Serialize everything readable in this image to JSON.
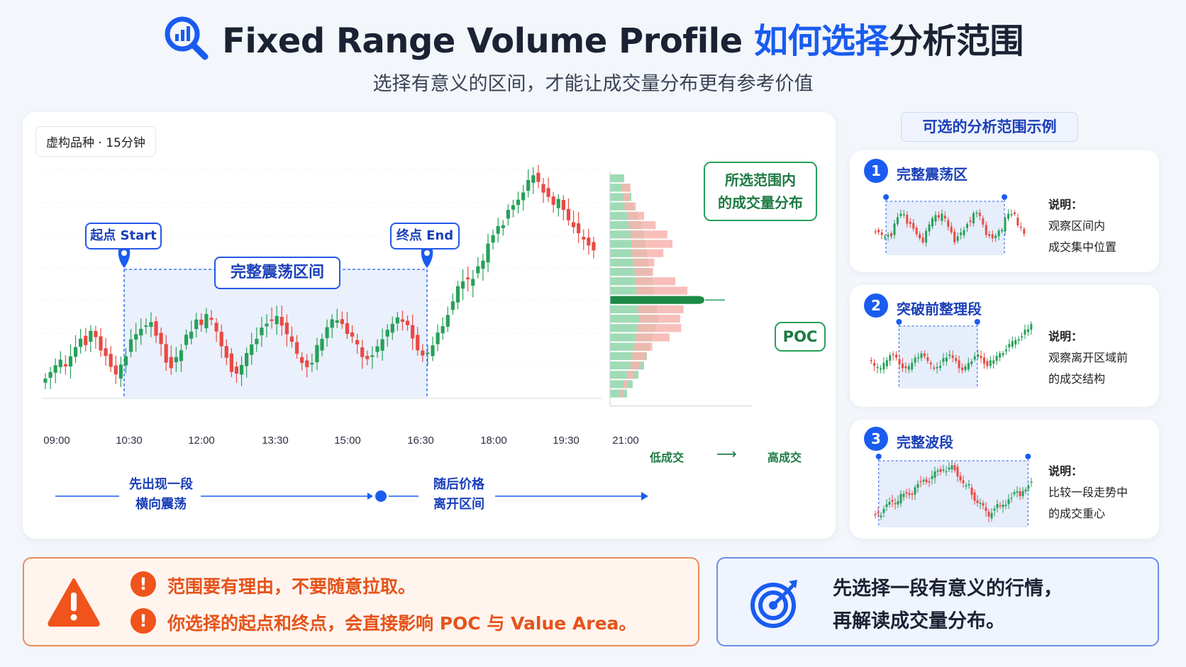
{
  "header": {
    "icon": "search-chart-icon",
    "title_main": "Fixed Range Volume Profile ",
    "title_blue": "如何选择",
    "title_rest": "分析范围",
    "subtitle": "选择有意义的区间，才能让成交量分布更有参考价值"
  },
  "main": {
    "tag": "虚构品种 · 15分钟",
    "start_label": "起点 Start",
    "end_label": "终点 End",
    "range_label": "完整震荡区间",
    "profile_label_1": "所选范围内",
    "profile_label_2": "的成交量分布",
    "poc_label": "POC",
    "low_volume": "低成交",
    "high_volume": "高成交",
    "arrow_glyph": "⟶",
    "flow_1a": "先出现一段",
    "flow_1b": "横向震荡",
    "flow_2a": "随后价格",
    "flow_2b": "离开区间"
  },
  "chart_data": {
    "type": "candlestick",
    "x_ticks": [
      "09:00",
      "10:30",
      "12:00",
      "13:30",
      "15:00",
      "16:30",
      "18:00",
      "19:30",
      "21:00"
    ],
    "range_start": "10:30",
    "range_end": "16:30",
    "price_path": [
      0.82,
      0.78,
      0.74,
      0.72,
      0.76,
      0.7,
      0.62,
      0.56,
      0.58,
      0.52,
      0.56,
      0.62,
      0.68,
      0.76,
      0.8,
      0.74,
      0.66,
      0.58,
      0.52,
      0.48,
      0.5,
      0.46,
      0.52,
      0.6,
      0.7,
      0.74,
      0.7,
      0.62,
      0.56,
      0.5,
      0.46,
      0.48,
      0.42,
      0.46,
      0.52,
      0.6,
      0.68,
      0.76,
      0.8,
      0.74,
      0.66,
      0.6,
      0.54,
      0.48,
      0.44,
      0.46,
      0.42,
      0.48,
      0.54,
      0.6,
      0.66,
      0.72,
      0.74,
      0.7,
      0.62,
      0.56,
      0.5,
      0.46,
      0.44,
      0.48,
      0.52,
      0.56,
      0.6,
      0.66,
      0.7,
      0.66,
      0.62,
      0.56,
      0.5,
      0.46,
      0.42,
      0.44,
      0.48,
      0.54,
      0.62,
      0.68,
      0.66,
      0.6,
      0.54,
      0.48,
      0.4,
      0.32,
      0.24,
      0.18,
      0.2,
      0.16,
      0.1,
      0.06,
      -0.04,
      -0.1,
      -0.16,
      -0.2,
      -0.26,
      -0.3,
      -0.36,
      -0.4,
      -0.46,
      -0.5,
      -0.46,
      -0.4,
      -0.36,
      -0.3,
      -0.34,
      -0.28,
      -0.22,
      -0.18,
      -0.12,
      -0.08,
      -0.06,
      -0.02
    ],
    "volume_profile": {
      "rows": 24,
      "green": [
        20,
        28,
        30,
        34,
        40,
        44,
        48,
        50,
        52,
        54,
        58,
        60,
        62,
        64,
        66,
        68,
        64,
        60,
        56,
        52,
        48,
        40,
        32,
        24
      ],
      "red": [
        0,
        12,
        10,
        16,
        24,
        38,
        52,
        58,
        44,
        30,
        26,
        56,
        72,
        0,
        64,
        58,
        62,
        48,
        26,
        20,
        14,
        10,
        6,
        4
      ],
      "poc_row": 13
    }
  },
  "right_panel": {
    "title": "可选的分析范围示例",
    "note_heading": "说明：",
    "examples": [
      {
        "num": "1",
        "title": "完整震荡区",
        "note_1": "观察区间内",
        "note_2": "成交集中位置"
      },
      {
        "num": "2",
        "title": "突破前整理段",
        "note_1": "观察离开区域前",
        "note_2": "的成交结构"
      },
      {
        "num": "3",
        "title": "完整波段",
        "note_1": "比较一段走势中",
        "note_2": "的成交重心"
      }
    ]
  },
  "bottom": {
    "warn_1": "范围要有理由，不要随意拉取。",
    "warn_2": "你选择的起点和终点，会直接影响 POC 与 Value Area。",
    "tip_1": "先选择一段有意义的行情，",
    "tip_2": "再解读成交量分布。"
  },
  "colors": {
    "blue": "#1a5cf0",
    "up": "#27a05a",
    "down": "#e84a44",
    "orange": "#f0531b"
  }
}
